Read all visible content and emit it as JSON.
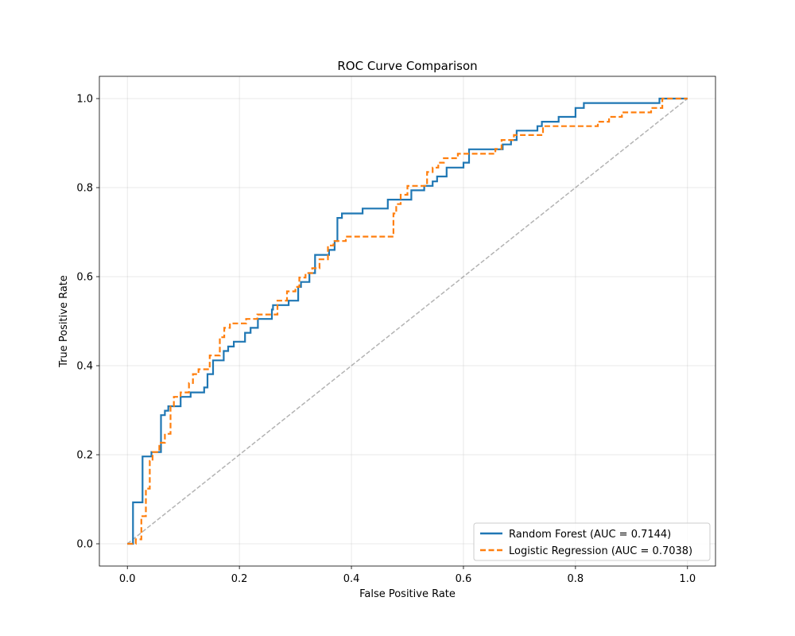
{
  "chart_data": {
    "type": "line",
    "title": "ROC Curve Comparison",
    "xlabel": "False Positive Rate",
    "ylabel": "True Positive Rate",
    "xlim": [
      -0.05,
      1.05
    ],
    "ylim": [
      -0.05,
      1.05
    ],
    "xticks": [
      0.0,
      0.2,
      0.4,
      0.6,
      0.8,
      1.0
    ],
    "yticks": [
      0.0,
      0.2,
      0.4,
      0.6,
      0.8,
      1.0
    ],
    "xtick_labels": [
      "0.0",
      "0.2",
      "0.4",
      "0.6",
      "0.8",
      "1.0"
    ],
    "ytick_labels": [
      "0.0",
      "0.2",
      "0.4",
      "0.6",
      "0.8",
      "1.0"
    ],
    "grid": true,
    "legend_position": "lower-right",
    "series": [
      {
        "name": "Random Forest (AUC = 0.7144)",
        "color": "#1f77b4",
        "linestyle": "solid",
        "x": [
          0.0,
          0.01,
          0.01,
          0.027,
          0.027,
          0.043,
          0.043,
          0.06,
          0.06,
          0.067,
          0.067,
          0.073,
          0.073,
          0.095,
          0.095,
          0.113,
          0.113,
          0.137,
          0.137,
          0.143,
          0.143,
          0.153,
          0.153,
          0.172,
          0.172,
          0.18,
          0.18,
          0.19,
          0.19,
          0.21,
          0.21,
          0.22,
          0.22,
          0.233,
          0.233,
          0.258,
          0.258,
          0.26,
          0.26,
          0.288,
          0.288,
          0.305,
          0.305,
          0.31,
          0.31,
          0.325,
          0.325,
          0.335,
          0.335,
          0.36,
          0.36,
          0.37,
          0.37,
          0.375,
          0.375,
          0.383,
          0.383,
          0.42,
          0.42,
          0.465,
          0.465,
          0.475,
          0.475,
          0.507,
          0.507,
          0.53,
          0.53,
          0.545,
          0.545,
          0.553,
          0.553,
          0.57,
          0.57,
          0.6,
          0.6,
          0.61,
          0.61,
          0.67,
          0.67,
          0.685,
          0.685,
          0.695,
          0.695,
          0.732,
          0.732,
          0.74,
          0.74,
          0.77,
          0.77,
          0.79,
          0.79,
          0.8,
          0.8,
          0.815,
          0.815,
          0.853,
          0.853,
          0.95,
          0.95,
          1.0
        ],
        "y": [
          0.0,
          0.0,
          0.093,
          0.093,
          0.196,
          0.196,
          0.206,
          0.206,
          0.289,
          0.289,
          0.299,
          0.299,
          0.309,
          0.309,
          0.33,
          0.33,
          0.34,
          0.34,
          0.351,
          0.351,
          0.381,
          0.381,
          0.412,
          0.412,
          0.433,
          0.433,
          0.443,
          0.443,
          0.454,
          0.454,
          0.474,
          0.474,
          0.485,
          0.485,
          0.505,
          0.505,
          0.526,
          0.526,
          0.536,
          0.536,
          0.546,
          0.546,
          0.577,
          0.577,
          0.588,
          0.588,
          0.608,
          0.608,
          0.649,
          0.649,
          0.66,
          0.66,
          0.68,
          0.68,
          0.732,
          0.732,
          0.742,
          0.742,
          0.753,
          0.753,
          0.773,
          0.773,
          0.773,
          0.773,
          0.794,
          0.794,
          0.804,
          0.804,
          0.814,
          0.814,
          0.825,
          0.825,
          0.845,
          0.845,
          0.856,
          0.856,
          0.886,
          0.886,
          0.897,
          0.897,
          0.907,
          0.907,
          0.928,
          0.928,
          0.938,
          0.938,
          0.948,
          0.948,
          0.959,
          0.959,
          0.959,
          0.959,
          0.979,
          0.979,
          0.99,
          0.99,
          0.99,
          0.99,
          1.0,
          1.0
        ]
      },
      {
        "name": "Logistic Regression (AUC = 0.7038)",
        "color": "#ff7f0e",
        "linestyle": "dashed",
        "x": [
          0.0,
          0.015,
          0.015,
          0.025,
          0.025,
          0.033,
          0.033,
          0.04,
          0.04,
          0.045,
          0.045,
          0.057,
          0.057,
          0.067,
          0.067,
          0.077,
          0.077,
          0.083,
          0.083,
          0.095,
          0.095,
          0.11,
          0.11,
          0.117,
          0.117,
          0.127,
          0.127,
          0.147,
          0.147,
          0.165,
          0.165,
          0.173,
          0.173,
          0.183,
          0.183,
          0.212,
          0.212,
          0.232,
          0.232,
          0.268,
          0.268,
          0.285,
          0.285,
          0.3,
          0.3,
          0.307,
          0.307,
          0.318,
          0.318,
          0.33,
          0.33,
          0.343,
          0.343,
          0.358,
          0.358,
          0.368,
          0.368,
          0.39,
          0.39,
          0.415,
          0.415,
          0.475,
          0.475,
          0.48,
          0.48,
          0.488,
          0.488,
          0.5,
          0.5,
          0.535,
          0.535,
          0.545,
          0.545,
          0.555,
          0.555,
          0.565,
          0.565,
          0.59,
          0.59,
          0.657,
          0.657,
          0.668,
          0.668,
          0.69,
          0.69,
          0.742,
          0.742,
          0.818,
          0.818,
          0.84,
          0.84,
          0.86,
          0.86,
          0.883,
          0.883,
          0.935,
          0.935,
          0.955,
          0.955,
          1.0
        ],
        "y": [
          0.0,
          0.0,
          0.01,
          0.01,
          0.062,
          0.062,
          0.124,
          0.124,
          0.186,
          0.186,
          0.206,
          0.206,
          0.227,
          0.227,
          0.247,
          0.247,
          0.309,
          0.309,
          0.33,
          0.33,
          0.34,
          0.34,
          0.361,
          0.361,
          0.381,
          0.381,
          0.392,
          0.392,
          0.423,
          0.423,
          0.464,
          0.464,
          0.485,
          0.485,
          0.495,
          0.495,
          0.505,
          0.505,
          0.515,
          0.515,
          0.546,
          0.546,
          0.567,
          0.567,
          0.577,
          0.577,
          0.598,
          0.598,
          0.608,
          0.608,
          0.619,
          0.619,
          0.639,
          0.639,
          0.67,
          0.67,
          0.68,
          0.68,
          0.69,
          0.69,
          0.69,
          0.69,
          0.742,
          0.742,
          0.763,
          0.763,
          0.784,
          0.784,
          0.804,
          0.804,
          0.835,
          0.835,
          0.845,
          0.845,
          0.856,
          0.856,
          0.866,
          0.866,
          0.876,
          0.876,
          0.887,
          0.887,
          0.907,
          0.907,
          0.918,
          0.918,
          0.938,
          0.938,
          0.938,
          0.938,
          0.948,
          0.948,
          0.959,
          0.959,
          0.969,
          0.969,
          0.979,
          0.979,
          1.0,
          1.0
        ]
      },
      {
        "color": "#808080",
        "linestyle": "dashed",
        "x": [
          0.0,
          1.0
        ],
        "y": [
          0.0,
          1.0
        ]
      }
    ]
  }
}
